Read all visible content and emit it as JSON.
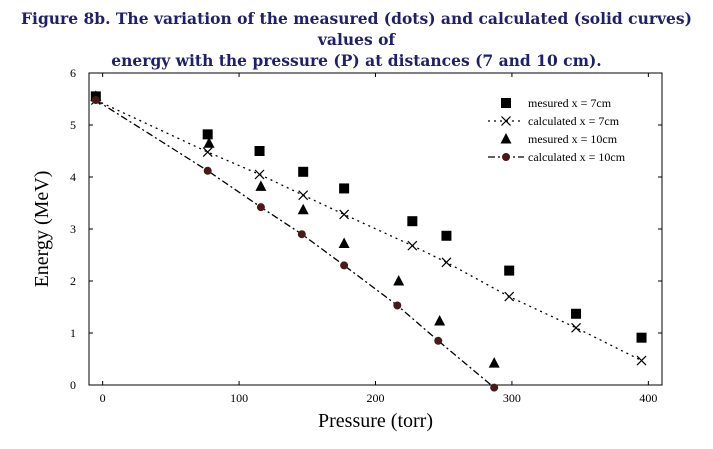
{
  "figure": {
    "title_line1": "Figure 8b. The variation of the measured (dots) and calculated (solid curves) values of",
    "title_line2": "energy with the pressure (P) at distances (7 and 10 cm)."
  },
  "chart_data": {
    "type": "scatter",
    "xlabel": "Pressure (torr)",
    "ylabel": "Energy (MeV)",
    "xlim": [
      -10,
      410
    ],
    "ylim": [
      0,
      6
    ],
    "x_ticks": [
      0,
      100,
      200,
      300,
      400
    ],
    "y_ticks": [
      0,
      1,
      2,
      3,
      4,
      5,
      6
    ],
    "x_tick_labels": [
      "0",
      "100",
      "200",
      "300",
      "400"
    ],
    "y_tick_labels": [
      "0",
      "1",
      "2",
      "3",
      "4",
      "5",
      "6"
    ],
    "legend_position": "top-right",
    "series": [
      {
        "name": "mesured x = 7cm",
        "marker": "square",
        "line": "none",
        "color": "#000000",
        "x": [
          -5,
          77,
          115,
          147,
          177,
          227,
          252,
          298,
          347,
          395
        ],
        "y": [
          5.55,
          4.82,
          4.5,
          4.1,
          3.78,
          3.15,
          2.87,
          2.2,
          1.37,
          0.91
        ]
      },
      {
        "name": "calculated x = 7cm",
        "marker": "x",
        "line": "dotted",
        "color": "#000000",
        "x": [
          -5,
          77,
          115,
          147,
          177,
          227,
          252,
          298,
          347,
          395
        ],
        "y": [
          5.48,
          4.48,
          4.05,
          3.65,
          3.28,
          2.68,
          2.36,
          1.7,
          1.1,
          0.47
        ]
      },
      {
        "name": "mesured x = 10cm",
        "marker": "triangle",
        "line": "none",
        "color": "#000000",
        "x": [
          -5,
          78,
          116,
          147,
          177,
          217,
          247,
          287
        ],
        "y": [
          5.55,
          4.65,
          3.82,
          3.37,
          2.72,
          2.0,
          1.23,
          0.42
        ]
      },
      {
        "name": "calculated x = 10cm",
        "marker": "circle",
        "line": "dashdot",
        "color": "#4a1a1a",
        "x": [
          -5,
          77,
          116,
          146,
          177,
          216,
          246,
          287
        ],
        "y": [
          5.48,
          4.12,
          3.42,
          2.9,
          2.3,
          1.53,
          0.85,
          -0.05
        ]
      }
    ]
  }
}
